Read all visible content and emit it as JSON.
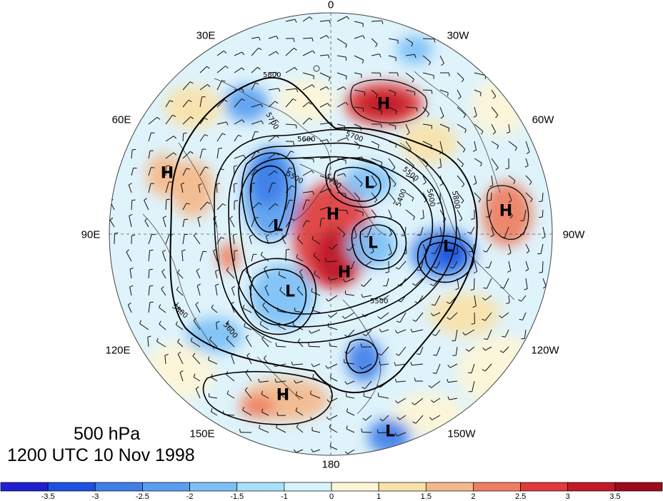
{
  "title": {
    "level": "500 hPa",
    "time": "1200 UTC 10 Nov 1998"
  },
  "longitude_labels": {
    "lon_0": "0",
    "lon_30w": "30W",
    "lon_60w": "60W",
    "lon_90w": "90W",
    "lon_120w": "120W",
    "lon_150w": "150W",
    "lon_180": "180",
    "lon_150e": "150E",
    "lon_120e": "120E",
    "lon_90e": "90E",
    "lon_60e": "60E",
    "lon_30e": "30E"
  },
  "pressure_centers": [
    {
      "id": "h1",
      "type": "H"
    },
    {
      "id": "h2",
      "type": "H"
    },
    {
      "id": "h3",
      "type": "H"
    },
    {
      "id": "h4",
      "type": "H"
    },
    {
      "id": "h5",
      "type": "H"
    },
    {
      "id": "h6",
      "type": "H"
    },
    {
      "id": "l1",
      "type": "L"
    },
    {
      "id": "l2",
      "type": "L"
    },
    {
      "id": "l3",
      "type": "L"
    },
    {
      "id": "l4",
      "type": "L"
    },
    {
      "id": "l5",
      "type": "L"
    },
    {
      "id": "l6",
      "type": "L"
    }
  ],
  "contour_labels": [
    "5800",
    "5700",
    "5600",
    "5500",
    "5400",
    "5700",
    "5600",
    "5500",
    "5800",
    "5800",
    "5600",
    "5500",
    "5400"
  ],
  "colorbar": {
    "ticks": [
      "-3.5",
      "-3",
      "-2.5",
      "-2",
      "-1.5",
      "-1",
      "0",
      "1",
      "1.5",
      "2",
      "2.5",
      "3",
      "3.5"
    ],
    "colors": [
      "#2020d0",
      "#1c50e0",
      "#3f7fe8",
      "#5a9ef0",
      "#7cc0f6",
      "#a8e0fa",
      "#d8f2fb",
      "#fdf5d6",
      "#f8e2a8",
      "#f4b88a",
      "#ee7e60",
      "#e03a3a",
      "#c01a28",
      "#9c0a1c"
    ]
  }
}
